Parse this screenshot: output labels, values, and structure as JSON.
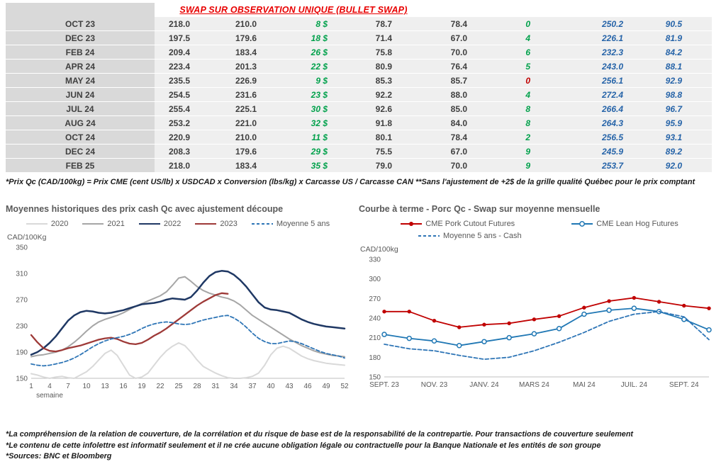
{
  "title": "SWAP SUR OBSERVATION UNIQUE (BULLET SWAP)",
  "colors": {
    "title_red": "#E80000",
    "positive_green": "#00A14B",
    "negative_red": "#C00000",
    "futures_blue": "#2563A8",
    "cell_text": "#3F3F3F",
    "chart_text": "#595959",
    "table_bg": "#EFEFEF",
    "label_col_bg": "#D9D9D9"
  },
  "table": {
    "rows": [
      {
        "month": "OCT 23",
        "values": [
          "218.0",
          "210.0",
          "8 $",
          "78.7",
          "78.4",
          "0",
          "250.2",
          "90.5"
        ],
        "delta_color": "green"
      },
      {
        "month": "DEC 23",
        "values": [
          "197.5",
          "179.6",
          "18 $",
          "71.4",
          "67.0",
          "4",
          "226.1",
          "81.9"
        ],
        "delta_color": "green"
      },
      {
        "month": "FEB 24",
        "values": [
          "209.4",
          "183.4",
          "26 $",
          "75.8",
          "70.0",
          "6",
          "232.3",
          "84.2"
        ],
        "delta_color": "green"
      },
      {
        "month": "APR 24",
        "values": [
          "223.4",
          "201.3",
          "22 $",
          "80.9",
          "76.4",
          "5",
          "243.0",
          "88.1"
        ],
        "delta_color": "green"
      },
      {
        "month": "MAY 24",
        "values": [
          "235.5",
          "226.9",
          "9 $",
          "85.3",
          "85.7",
          "0",
          "256.1",
          "92.9"
        ],
        "delta_color": "red"
      },
      {
        "month": "JUN 24",
        "values": [
          "254.5",
          "231.6",
          "23 $",
          "92.2",
          "88.0",
          "4",
          "272.4",
          "98.8"
        ],
        "delta_color": "green"
      },
      {
        "month": "JUL 24",
        "values": [
          "255.4",
          "225.1",
          "30 $",
          "92.6",
          "85.0",
          "8",
          "266.4",
          "96.7"
        ],
        "delta_color": "green"
      },
      {
        "month": "AUG 24",
        "values": [
          "253.2",
          "221.0",
          "32 $",
          "91.8",
          "84.0",
          "8",
          "264.3",
          "95.9"
        ],
        "delta_color": "green"
      },
      {
        "month": "OCT 24",
        "values": [
          "220.9",
          "210.0",
          "11 $",
          "80.1",
          "78.4",
          "2",
          "256.5",
          "93.1"
        ],
        "delta_color": "green"
      },
      {
        "month": "DEC 24",
        "values": [
          "208.3",
          "179.6",
          "29 $",
          "75.5",
          "67.0",
          "9",
          "245.9",
          "89.2"
        ],
        "delta_color": "green"
      },
      {
        "month": "FEB 25",
        "values": [
          "218.0",
          "183.4",
          "35 $",
          "79.0",
          "70.0",
          "9",
          "253.7",
          "92.0"
        ],
        "delta_color": "green"
      }
    ],
    "footnote": "*Prix Qc (CAD/100kg) = Prix CME (cent US/lb) x USDCAD x Conversion (lbs/kg) x Carcasse US / Carcasse CAN **Sans l'ajustement de +2$ de la grille qualité Québec pour le prix comptant"
  },
  "chart_data": [
    {
      "type": "line",
      "title": "Moyennes historiques des prix cash Qc avec ajustement découpe",
      "y_unit_label": "CAD/100Kg",
      "xlabel": "semaine",
      "ylim": [
        150,
        350
      ],
      "yticks": [
        150,
        190,
        230,
        270,
        310,
        350
      ],
      "xlim": [
        1,
        52
      ],
      "xticks": [
        1,
        4,
        7,
        10,
        13,
        16,
        19,
        22,
        25,
        28,
        31,
        34,
        37,
        40,
        43,
        46,
        49,
        52
      ],
      "legend_position": "top",
      "grid": false,
      "series": [
        {
          "name": "2020",
          "color": "#D9D9D9",
          "style": "solid",
          "width": 2,
          "values": [
            157,
            155,
            152,
            150,
            152,
            153,
            151,
            150,
            155,
            160,
            168,
            178,
            188,
            193,
            185,
            170,
            155,
            150,
            152,
            158,
            170,
            182,
            192,
            199,
            204,
            200,
            190,
            178,
            168,
            163,
            158,
            154,
            151,
            150,
            150,
            151,
            153,
            158,
            170,
            186,
            196,
            199,
            196,
            190,
            184,
            180,
            177,
            175,
            173,
            172,
            171,
            170
          ]
        },
        {
          "name": "2021",
          "color": "#A6A6A6",
          "style": "solid",
          "width": 2,
          "values": [
            183,
            185,
            186,
            188,
            190,
            193,
            198,
            205,
            213,
            222,
            230,
            236,
            240,
            243,
            246,
            250,
            255,
            260,
            264,
            268,
            272,
            276,
            282,
            292,
            303,
            305,
            298,
            290,
            284,
            280,
            277,
            274,
            272,
            268,
            262,
            254,
            246,
            240,
            234,
            228,
            222,
            216,
            210,
            205,
            200,
            196,
            192,
            189,
            187,
            185,
            184,
            183
          ]
        },
        {
          "name": "2022",
          "color": "#1F3864",
          "style": "solid",
          "width": 2.5,
          "values": [
            186,
            190,
            196,
            204,
            214,
            226,
            238,
            246,
            251,
            253,
            252,
            250,
            249,
            250,
            252,
            254,
            257,
            260,
            263,
            264,
            265,
            267,
            270,
            272,
            271,
            270,
            274,
            284,
            296,
            306,
            312,
            314,
            313,
            308,
            300,
            290,
            278,
            266,
            258,
            255,
            254,
            252,
            250,
            245,
            240,
            236,
            233,
            231,
            229,
            228,
            227,
            226
          ]
        },
        {
          "name": "2023",
          "color": "#9E3A38",
          "style": "solid",
          "width": 2.3,
          "values": [
            216,
            205,
            196,
            192,
            191,
            193,
            196,
            198,
            200,
            203,
            206,
            209,
            211,
            212,
            210,
            206,
            203,
            202,
            204,
            209,
            215,
            220,
            226,
            233,
            240,
            247,
            254,
            261,
            267,
            272,
            277,
            280,
            279,
            null,
            null,
            null,
            null,
            null,
            null,
            null,
            null,
            null,
            null,
            null,
            null,
            null,
            null,
            null,
            null,
            null,
            null,
            null
          ]
        },
        {
          "name": "Moyenne 5 ans",
          "color": "#2E75B6",
          "style": "dashed",
          "width": 1.8,
          "values": [
            172,
            170,
            169,
            170,
            172,
            174,
            177,
            181,
            186,
            192,
            198,
            203,
            207,
            210,
            212,
            214,
            217,
            221,
            226,
            230,
            233,
            235,
            236,
            235,
            233,
            232,
            233,
            236,
            239,
            241,
            243,
            245,
            246,
            242,
            236,
            228,
            219,
            211,
            206,
            203,
            203,
            205,
            207,
            206,
            203,
            199,
            195,
            191,
            188,
            186,
            184,
            181
          ]
        }
      ]
    },
    {
      "type": "line",
      "title": "Courbe à terme - Porc Qc - Swap sur moyenne mensuelle",
      "y_unit_label": "CAD/100kg",
      "ylim": [
        150,
        330
      ],
      "yticks": [
        150,
        180,
        210,
        240,
        270,
        300,
        330
      ],
      "xlim": [
        0,
        13
      ],
      "xticks": [
        0,
        2,
        4,
        6,
        8,
        10,
        12
      ],
      "xtick_labels": [
        "SEPT. 23",
        "NOV. 23",
        "JANV. 24",
        "MARS 24",
        "MAI 24",
        "JUIL. 24",
        "SEPT. 24"
      ],
      "legend_position": "top",
      "grid": false,
      "legend_rows": [
        [
          "CME Pork Cutout Futures",
          "CME Lean Hog Futures"
        ],
        [
          "Moyenne 5 ans - Cash"
        ]
      ],
      "series": [
        {
          "name": "CME Pork Cutout Futures",
          "color": "#C00000",
          "style": "solid",
          "width": 1.8,
          "marker": "filled-circle",
          "values": [
            250,
            250,
            236,
            226,
            230,
            232,
            238,
            243,
            256,
            266,
            271,
            265,
            259,
            255
          ]
        },
        {
          "name": "CME Lean Hog Futures",
          "color": "#1F77B4",
          "style": "solid",
          "width": 1.8,
          "marker": "open-circle",
          "values": [
            215,
            209,
            205,
            198,
            204,
            210,
            216,
            224,
            246,
            252,
            255,
            250,
            238,
            222
          ]
        },
        {
          "name": "Moyenne 5 ans - Cash",
          "color": "#2E75B6",
          "style": "dashed",
          "width": 1.8,
          "values": [
            200,
            193,
            190,
            183,
            177,
            180,
            190,
            203,
            218,
            235,
            246,
            250,
            242,
            207
          ]
        }
      ]
    }
  ],
  "footnotes": [
    "*La compréhension de la relation de couverture, de la corrélation et du risque de base est de la responsabilité de la contrepartie. Pour transactions de couverture seulement",
    "*Le contenu de cette infolettre est informatif seulement et il ne crée aucune obligation légale ou contractuelle pour la Banque Nationale et les entités de son groupe",
    "*Sources: BNC et Bloomberg"
  ]
}
